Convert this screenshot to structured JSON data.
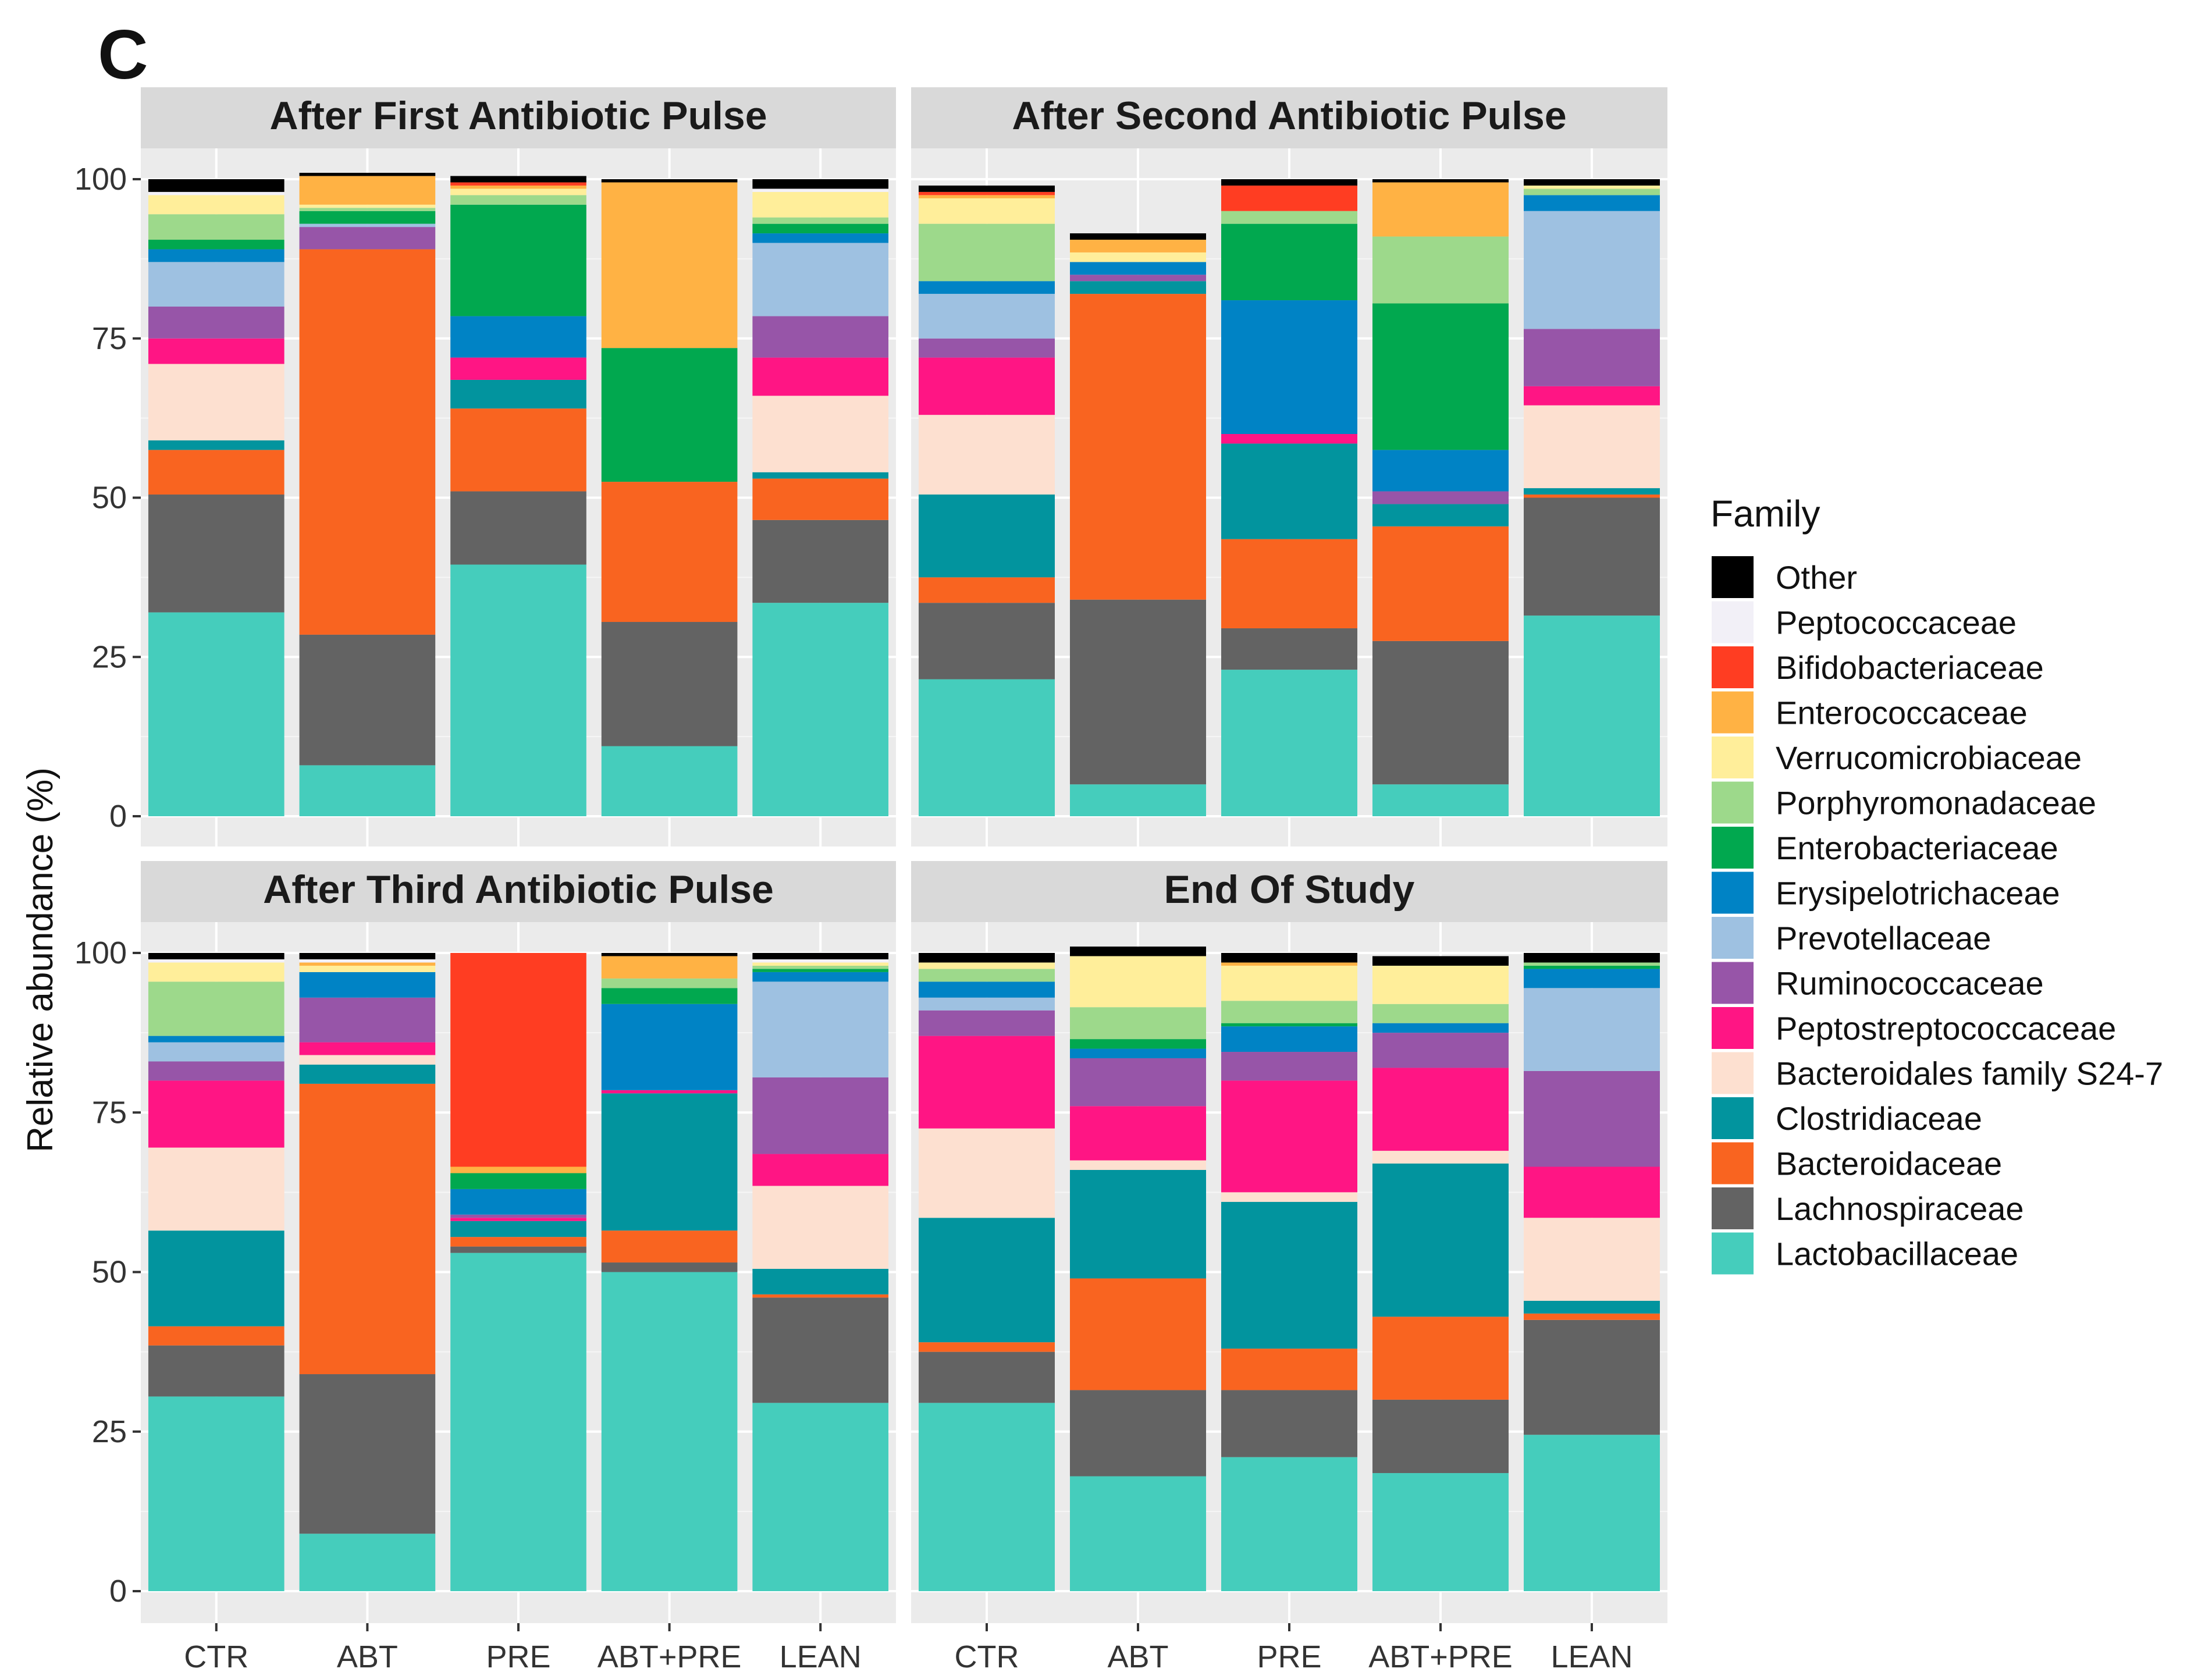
{
  "figure_label": "C",
  "chart_data": {
    "type": "bar",
    "stacked": true,
    "ylabel": "Relative abundance (%)",
    "ylim": [
      0,
      100
    ],
    "yticks": [
      0,
      25,
      50,
      75,
      100
    ],
    "categories": [
      "CTR",
      "ABT",
      "PRE",
      "ABT+PRE",
      "LEAN"
    ],
    "legend_title": "Family",
    "legend_position": "right",
    "families": [
      {
        "name": "Other",
        "color": "#000000"
      },
      {
        "name": "Peptococcaceae",
        "color": "#F2F0F7"
      },
      {
        "name": "Bifidobacteriaceae",
        "color": "#FF3D22"
      },
      {
        "name": "Enterococcaceae",
        "color": "#FFB244"
      },
      {
        "name": "Verrucomicrobiaceae",
        "color": "#FFEE9A"
      },
      {
        "name": "Porphyromonadaceae",
        "color": "#9DD98B"
      },
      {
        "name": "Enterobacteriaceae",
        "color": "#01A84F"
      },
      {
        "name": "Erysipelotrichaceae",
        "color": "#0083C5"
      },
      {
        "name": "Prevotellaceae",
        "color": "#9EC1E1"
      },
      {
        "name": "Ruminococcaceae",
        "color": "#9755A8"
      },
      {
        "name": "Peptostreptococcaceae",
        "color": "#FF1584"
      },
      {
        "name": "Bacteroidales family S24-7",
        "color": "#FDE0D0"
      },
      {
        "name": "Clostridiaceae",
        "color": "#02949E"
      },
      {
        "name": "Bacteroidaceae",
        "color": "#F96420"
      },
      {
        "name": "Lachnospiraceae",
        "color": "#636363"
      },
      {
        "name": "Lactobacillaceae",
        "color": "#45CDBC"
      }
    ],
    "stack_order_bottom_to_top": [
      "Lactobacillaceae",
      "Lachnospiraceae",
      "Bacteroidaceae",
      "Clostridiaceae",
      "Bacteroidales family S24-7",
      "Peptostreptococcaceae",
      "Ruminococcaceae",
      "Prevotellaceae",
      "Erysipelotrichaceae",
      "Enterobacteriaceae",
      "Porphyromonadaceae",
      "Verrucomicrobiaceae",
      "Enterococcaceae",
      "Bifidobacteriaceae",
      "Peptococcaceae",
      "Other"
    ],
    "panels": [
      {
        "title": "After First Antibiotic Pulse",
        "series": [
          {
            "name": "Lactobacillaceae",
            "values": [
              32,
              8,
              39.5,
              11,
              33.5
            ]
          },
          {
            "name": "Lachnospiraceae",
            "values": [
              18.5,
              20.5,
              11.5,
              19.5,
              13
            ]
          },
          {
            "name": "Bacteroidaceae",
            "values": [
              7,
              60.5,
              13,
              22,
              6.5
            ]
          },
          {
            "name": "Clostridiaceae",
            "values": [
              1.5,
              0,
              4.5,
              0,
              1
            ]
          },
          {
            "name": "Bacteroidales family S24-7",
            "values": [
              12,
              0,
              0,
              0,
              12
            ]
          },
          {
            "name": "Peptostreptococcaceae",
            "values": [
              4,
              0,
              3.5,
              0,
              6
            ]
          },
          {
            "name": "Ruminococcaceae",
            "values": [
              5,
              3.5,
              0,
              0,
              6.5
            ]
          },
          {
            "name": "Prevotellaceae",
            "values": [
              7,
              0.5,
              0,
              0,
              11.5
            ]
          },
          {
            "name": "Erysipelotrichaceae",
            "values": [
              2,
              0,
              6.5,
              0,
              1.5
            ]
          },
          {
            "name": "Enterobacteriaceae",
            "values": [
              1.5,
              2,
              17.5,
              21,
              1.5
            ]
          },
          {
            "name": "Porphyromonadaceae",
            "values": [
              4,
              0.5,
              1.5,
              0,
              1
            ]
          },
          {
            "name": "Verrucomicrobiaceae",
            "values": [
              3,
              0.5,
              1,
              0,
              4
            ]
          },
          {
            "name": "Enterococcaceae",
            "values": [
              0,
              4.5,
              0.5,
              26,
              0
            ]
          },
          {
            "name": "Bifidobacteriaceae",
            "values": [
              0,
              0,
              0.5,
              0,
              0
            ]
          },
          {
            "name": "Peptococcaceae",
            "values": [
              0.5,
              0,
              0,
              0,
              0.5
            ]
          },
          {
            "name": "Other",
            "values": [
              2,
              0.5,
              1,
              0.5,
              1.5
            ]
          }
        ]
      },
      {
        "title": "After Second Antibiotic Pulse",
        "series": [
          {
            "name": "Lactobacillaceae",
            "values": [
              21.5,
              5,
              23,
              5,
              31.5
            ]
          },
          {
            "name": "Lachnospiraceae",
            "values": [
              12,
              29,
              6.5,
              22.5,
              18.5
            ]
          },
          {
            "name": "Bacteroidaceae",
            "values": [
              4,
              48,
              14,
              18,
              0.5
            ]
          },
          {
            "name": "Clostridiaceae",
            "values": [
              13,
              2,
              15,
              3.5,
              1
            ]
          },
          {
            "name": "Bacteroidales family S24-7",
            "values": [
              12.5,
              0,
              0,
              0,
              13
            ]
          },
          {
            "name": "Peptostreptococcaceae",
            "values": [
              9,
              0,
              1.5,
              0,
              3
            ]
          },
          {
            "name": "Ruminococcaceae",
            "values": [
              3,
              1,
              0,
              2,
              9
            ]
          },
          {
            "name": "Prevotellaceae",
            "values": [
              7,
              0,
              0,
              0,
              18.5
            ]
          },
          {
            "name": "Erysipelotrichaceae",
            "values": [
              2,
              2,
              21,
              6.5,
              2.5
            ]
          },
          {
            "name": "Enterobacteriaceae",
            "values": [
              0,
              0,
              12,
              23,
              0
            ]
          },
          {
            "name": "Porphyromonadaceae",
            "values": [
              9,
              0,
              2,
              10.5,
              1
            ]
          },
          {
            "name": "Verrucomicrobiaceae",
            "values": [
              4,
              1.5,
              0,
              0,
              0.5
            ]
          },
          {
            "name": "Enterococcaceae",
            "values": [
              0.5,
              2,
              0,
              8.5,
              0
            ]
          },
          {
            "name": "Bifidobacteriaceae",
            "values": [
              0.5,
              0,
              4,
              0,
              0
            ]
          },
          {
            "name": "Peptococcaceae",
            "values": [
              0,
              0,
              0,
              0,
              0
            ]
          },
          {
            "name": "Other",
            "values": [
              1,
              1,
              1,
              0.5,
              1
            ]
          }
        ]
      },
      {
        "title": "After Third Antibiotic Pulse",
        "series": [
          {
            "name": "Lactobacillaceae",
            "values": [
              30.5,
              9,
              53,
              50,
              29.5
            ]
          },
          {
            "name": "Lachnospiraceae",
            "values": [
              8,
              25,
              1,
              1.5,
              16.5
            ]
          },
          {
            "name": "Bacteroidaceae",
            "values": [
              3,
              45.5,
              1.5,
              5,
              0.5
            ]
          },
          {
            "name": "Clostridiaceae",
            "values": [
              15,
              3,
              2.5,
              21.5,
              4
            ]
          },
          {
            "name": "Bacteroidales family S24-7",
            "values": [
              13,
              1.5,
              0,
              0,
              13
            ]
          },
          {
            "name": "Peptostreptococcaceae",
            "values": [
              10.5,
              2,
              0.5,
              0.5,
              5
            ]
          },
          {
            "name": "Ruminococcaceae",
            "values": [
              3,
              7,
              0.5,
              0,
              12
            ]
          },
          {
            "name": "Prevotellaceae",
            "values": [
              3,
              0,
              0,
              0,
              15
            ]
          },
          {
            "name": "Erysipelotrichaceae",
            "values": [
              1,
              4,
              4,
              13.5,
              1.5
            ]
          },
          {
            "name": "Enterobacteriaceae",
            "values": [
              0,
              0,
              2.5,
              2.5,
              0.5
            ]
          },
          {
            "name": "Porphyromonadaceae",
            "values": [
              8.5,
              0,
              0,
              1.5,
              0.5
            ]
          },
          {
            "name": "Verrucomicrobiaceae",
            "values": [
              3,
              1,
              0,
              0,
              0.5
            ]
          },
          {
            "name": "Enterococcaceae",
            "values": [
              0,
              0.5,
              1,
              3.5,
              0
            ]
          },
          {
            "name": "Bifidobacteriaceae",
            "values": [
              0,
              0,
              33.5,
              0,
              0
            ]
          },
          {
            "name": "Peptococcaceae",
            "values": [
              0.5,
              0.5,
              0,
              0,
              0.5
            ]
          },
          {
            "name": "Other",
            "values": [
              1,
              1,
              0,
              0.5,
              1
            ]
          }
        ]
      },
      {
        "title": "End Of Study",
        "series": [
          {
            "name": "Lactobacillaceae",
            "values": [
              29.5,
              18,
              21,
              18.5,
              24.5
            ]
          },
          {
            "name": "Lachnospiraceae",
            "values": [
              8,
              13.5,
              10.5,
              11.5,
              18
            ]
          },
          {
            "name": "Bacteroidaceae",
            "values": [
              1.5,
              17.5,
              6.5,
              13,
              1
            ]
          },
          {
            "name": "Clostridiaceae",
            "values": [
              19.5,
              17,
              23,
              24,
              2
            ]
          },
          {
            "name": "Bacteroidales family S24-7",
            "values": [
              14,
              1.5,
              1.5,
              2,
              13
            ]
          },
          {
            "name": "Peptostreptococcaceae",
            "values": [
              14.5,
              8.5,
              17.5,
              13,
              8
            ]
          },
          {
            "name": "Ruminococcaceae",
            "values": [
              4,
              7.5,
              4.5,
              5.5,
              15
            ]
          },
          {
            "name": "Prevotellaceae",
            "values": [
              2,
              0,
              0,
              0,
              13
            ]
          },
          {
            "name": "Erysipelotrichaceae",
            "values": [
              2.5,
              1.5,
              4,
              1.5,
              3
            ]
          },
          {
            "name": "Enterobacteriaceae",
            "values": [
              0,
              1.5,
              0.5,
              0,
              0.5
            ]
          },
          {
            "name": "Porphyromonadaceae",
            "values": [
              2,
              5,
              3.5,
              3,
              0.5
            ]
          },
          {
            "name": "Verrucomicrobiaceae",
            "values": [
              1,
              8,
              5.5,
              6,
              0
            ]
          },
          {
            "name": "Enterococcaceae",
            "values": [
              0,
              0,
              0.5,
              0,
              0
            ]
          },
          {
            "name": "Bifidobacteriaceae",
            "values": [
              0,
              0,
              0,
              0,
              0
            ]
          },
          {
            "name": "Peptococcaceae",
            "values": [
              0,
              0,
              0,
              0,
              0
            ]
          },
          {
            "name": "Other",
            "values": [
              1.5,
              1.5,
              1.5,
              1.5,
              1.5
            ]
          }
        ]
      }
    ]
  }
}
